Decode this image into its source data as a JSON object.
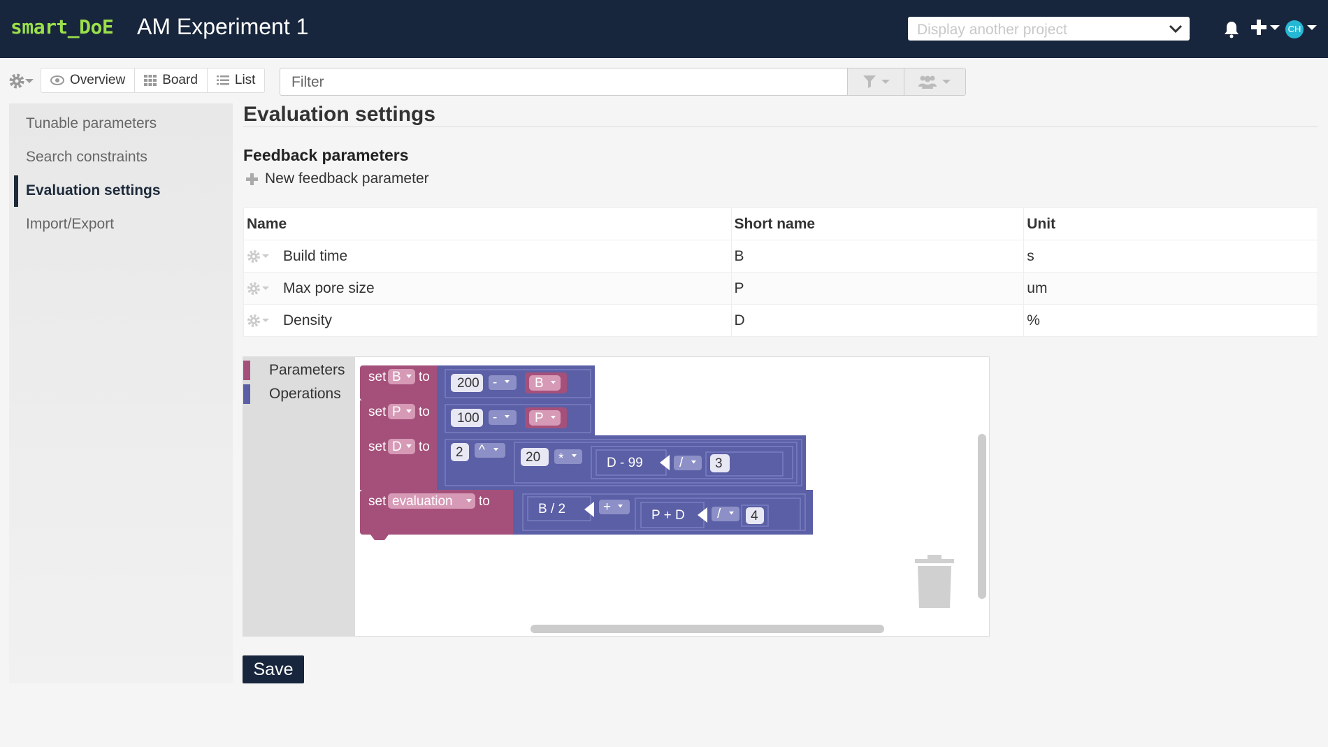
{
  "header": {
    "logo": "smart_DoE",
    "project_title": "AM Experiment 1",
    "project_select_placeholder": "Display another project",
    "avatar_initials": "CH"
  },
  "toolbar": {
    "views": [
      {
        "label": "Overview",
        "icon": "eye-icon"
      },
      {
        "label": "Board",
        "icon": "grid-icon"
      },
      {
        "label": "List",
        "icon": "list-icon"
      }
    ],
    "filter_placeholder": "Filter"
  },
  "sidebar": {
    "items": [
      {
        "label": "Tunable parameters",
        "active": false
      },
      {
        "label": "Search constraints",
        "active": false
      },
      {
        "label": "Evaluation settings",
        "active": true
      },
      {
        "label": "Import/Export",
        "active": false
      }
    ]
  },
  "main": {
    "title": "Evaluation settings",
    "section_title": "Feedback parameters",
    "new_param_label": "New feedback parameter",
    "table": {
      "headers": [
        "Name",
        "Short name",
        "Unit"
      ],
      "rows": [
        {
          "name": "Build time",
          "short": "B",
          "unit": "s"
        },
        {
          "name": "Max pore size",
          "short": "P",
          "unit": "um"
        },
        {
          "name": "Density",
          "short": "D",
          "unit": "%"
        }
      ]
    },
    "blockly": {
      "categories": [
        {
          "label": "Parameters",
          "color": "#a5507a"
        },
        {
          "label": "Operations",
          "color": "#5b5fa6"
        }
      ],
      "blocks": {
        "b1": {
          "set": "set",
          "var": "B",
          "to": "to",
          "num": "200",
          "op": "-",
          "ref": "B"
        },
        "b2": {
          "set": "set",
          "var": "P",
          "to": "to",
          "num": "100",
          "op": "-",
          "ref": "P"
        },
        "b3": {
          "set": "set",
          "var": "D",
          "to": "to",
          "num": "2",
          "op": "^",
          "num2": "20",
          "op2": "*",
          "inner": "D - 99",
          "op3": "/",
          "num3": "3"
        },
        "b4": {
          "set": "set",
          "var": "evaluation",
          "to": "to",
          "left": "B / 2",
          "op": "+",
          "inner": "P + D",
          "op2": "/",
          "num": "4"
        }
      }
    },
    "save_label": "Save"
  },
  "colors": {
    "header_bg": "#18263d",
    "logo": "#9be04a",
    "param_block": "#a5507a",
    "op_block": "#5b5fa6"
  }
}
